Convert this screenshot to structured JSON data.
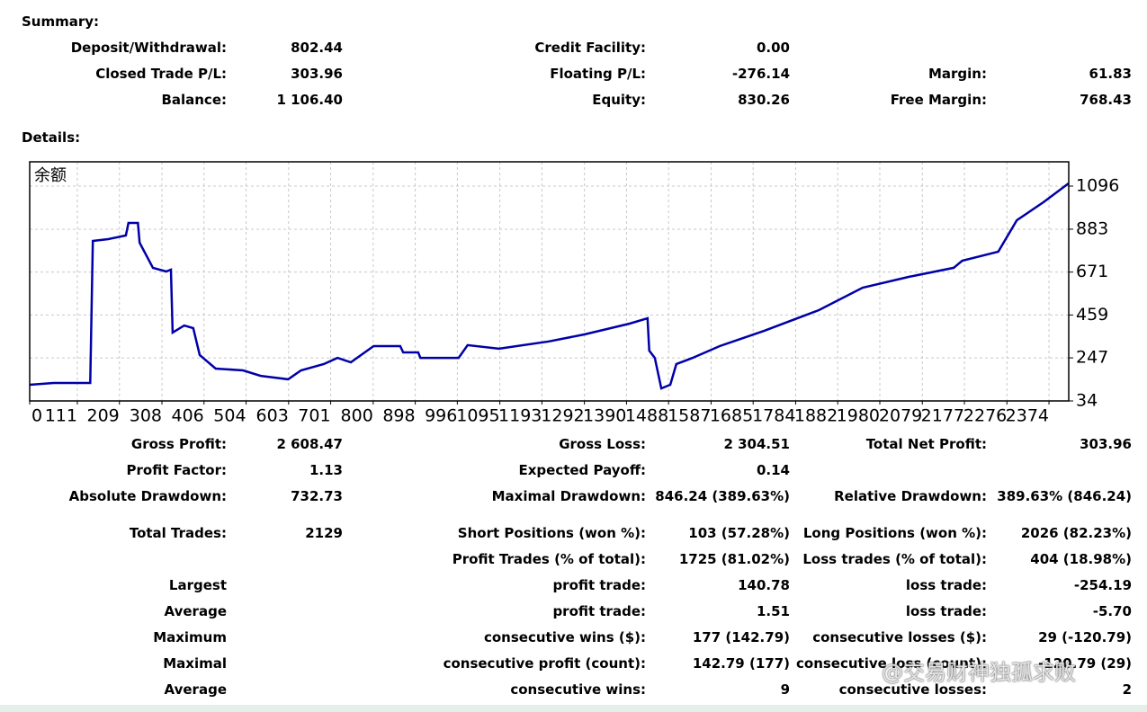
{
  "summary": {
    "title": "Summary:",
    "rows": [
      {
        "left": {
          "label": "Deposit/Withdrawal:",
          "value": "802.44"
        },
        "middle": {
          "label": "Credit Facility:",
          "value": "0.00"
        }
      },
      {
        "left": {
          "label": "Closed Trade P/L:",
          "value": "303.96"
        },
        "middle": {
          "label": "Floating P/L:",
          "value": "-276.14"
        },
        "right": {
          "label": "Margin:",
          "value": "61.83"
        }
      },
      {
        "left": {
          "label": "Balance:",
          "value": "1 106.40"
        },
        "middle": {
          "label": "Equity:",
          "value": "830.26"
        },
        "right": {
          "label": "Free Margin:",
          "value": "768.43"
        }
      }
    ]
  },
  "details": {
    "title": "Details:",
    "rows": [
      {
        "left": {
          "label": "Gross Profit:",
          "value": "2 608.47"
        },
        "middle": {
          "label": "Gross Loss:",
          "value": "2 304.51"
        },
        "right": {
          "label": "Total Net Profit:",
          "value": "303.96"
        }
      },
      {
        "left": {
          "label": "Profit Factor:",
          "value": "1.13"
        },
        "middle": {
          "label": "Expected Payoff:",
          "value": "0.14"
        }
      },
      {
        "left": {
          "label": "Absolute Drawdown:",
          "value": "732.73"
        },
        "middle": {
          "label": "Maximal Drawdown:",
          "value": "846.24 (389.63%)"
        },
        "right": {
          "label": "Relative Drawdown:",
          "value": "389.63% (846.24)"
        }
      },
      {
        "left": {
          "label": "Total Trades:",
          "value": "2129"
        },
        "middle": {
          "label": "Short Positions (won %):",
          "value": "103 (57.28%)"
        },
        "right": {
          "label": "Long Positions (won %):",
          "value": "2026 (82.23%)"
        }
      },
      {
        "middle": {
          "label": "Profit Trades (% of total):",
          "value": "1725 (81.02%)"
        },
        "right": {
          "label": "Loss trades (% of total):",
          "value": "404 (18.98%)"
        }
      },
      {
        "left": {
          "label": "Largest"
        },
        "middle": {
          "label": "profit trade:",
          "value": "140.78"
        },
        "right": {
          "label": "loss trade:",
          "value": "-254.19"
        }
      },
      {
        "left": {
          "label": "Average"
        },
        "middle": {
          "label": "profit trade:",
          "value": "1.51"
        },
        "right": {
          "label": "loss trade:",
          "value": "-5.70"
        }
      },
      {
        "left": {
          "label": "Maximum"
        },
        "middle": {
          "label": "consecutive wins ($):",
          "value": "177 (142.79)"
        },
        "right": {
          "label": "consecutive losses ($):",
          "value": "29 (-120.79)"
        }
      },
      {
        "left": {
          "label": "Maximal"
        },
        "middle": {
          "label": "consecutive profit (count):",
          "value": "142.79 (177)"
        },
        "right": {
          "label": "consecutive loss (count):",
          "value": "-120.79 (29)"
        }
      },
      {
        "left": {
          "label": "Average"
        },
        "middle": {
          "label": "consecutive wins:",
          "value": "9"
        },
        "right": {
          "label": "consecutive losses:",
          "value": "2"
        }
      }
    ]
  },
  "chart_data": {
    "type": "line",
    "x": [
      0,
      56,
      141,
      147,
      183,
      224,
      230,
      252,
      256,
      287,
      318,
      329,
      333,
      360,
      381,
      396,
      433,
      497,
      538,
      602,
      632,
      685,
      717,
      748,
      801,
      863,
      870,
      905,
      910,
      999,
      1020,
      1093,
      1209,
      1292,
      1397,
      1439,
      1443,
      1456,
      1471,
      1492,
      1506,
      1544,
      1607,
      1711,
      1838,
      1940,
      2047,
      2152,
      2172,
      2256,
      2299,
      2361,
      2420
    ],
    "series": [
      {
        "name": "余额",
        "color": "#0000a8",
        "values": [
          114,
          123,
          123,
          825,
          834,
          852,
          914,
          914,
          816,
          692,
          674,
          683,
          372,
          407,
          394,
          261,
          194,
          185,
          158,
          141,
          185,
          216,
          247,
          225,
          305,
          305,
          274,
          274,
          247,
          247,
          310,
          292,
          328,
          363,
          416,
          443,
          283,
          247,
          96,
          114,
          216,
          247,
          305,
          381,
          483,
          594,
          647,
          692,
          727,
          772,
          927,
          1016,
          1110
        ]
      }
    ],
    "xlim": [
      0,
      2420
    ],
    "ylim": [
      34,
      1216
    ],
    "xticks": [
      0,
      111,
      209,
      308,
      406,
      504,
      603,
      701,
      800,
      898,
      996,
      1095,
      1193,
      1292,
      1390,
      1488,
      1587,
      1685,
      1784,
      1882,
      1980,
      2079,
      2177,
      2276,
      2374
    ],
    "yticks": [
      34,
      247,
      459,
      671,
      883,
      1096
    ],
    "grid": true
  },
  "watermark": "@交易财神独孤求败"
}
